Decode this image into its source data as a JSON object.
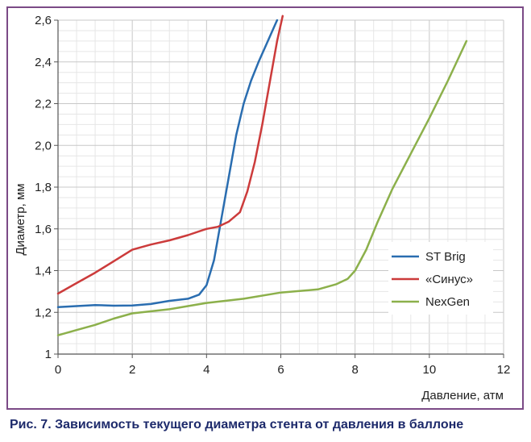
{
  "chart_data": {
    "type": "line",
    "title": "",
    "xlabel": "Давление, атм",
    "ylabel": "Диаметр, мм",
    "xlim": [
      0,
      12
    ],
    "ylim": [
      1,
      2.6
    ],
    "xticks": [
      "0",
      "2",
      "4",
      "6",
      "8",
      "10",
      "12"
    ],
    "yticks": [
      "1",
      "1,2",
      "1,4",
      "1,6",
      "1,8",
      "2,0",
      "2,2",
      "2,4",
      "2,6"
    ],
    "grid": true,
    "legend_position": "right",
    "series": [
      {
        "name": "ST Brig",
        "color": "#2a6db0",
        "points": [
          [
            0,
            1.225
          ],
          [
            0.5,
            1.23
          ],
          [
            1,
            1.235
          ],
          [
            1.5,
            1.232
          ],
          [
            2,
            1.233
          ],
          [
            2.5,
            1.24
          ],
          [
            3,
            1.255
          ],
          [
            3.5,
            1.265
          ],
          [
            3.8,
            1.285
          ],
          [
            4,
            1.33
          ],
          [
            4.2,
            1.45
          ],
          [
            4.4,
            1.65
          ],
          [
            4.6,
            1.85
          ],
          [
            4.8,
            2.05
          ],
          [
            5,
            2.2
          ],
          [
            5.2,
            2.31
          ],
          [
            5.4,
            2.4
          ],
          [
            5.6,
            2.48
          ],
          [
            5.8,
            2.56
          ],
          [
            5.9,
            2.6
          ]
        ]
      },
      {
        "name": "«Синус»",
        "color": "#cc3b3b",
        "points": [
          [
            0,
            1.29
          ],
          [
            0.5,
            1.34
          ],
          [
            1,
            1.39
          ],
          [
            1.5,
            1.445
          ],
          [
            2,
            1.5
          ],
          [
            2.5,
            1.525
          ],
          [
            3,
            1.545
          ],
          [
            3.5,
            1.57
          ],
          [
            4,
            1.6
          ],
          [
            4.3,
            1.61
          ],
          [
            4.6,
            1.635
          ],
          [
            4.9,
            1.68
          ],
          [
            5.1,
            1.78
          ],
          [
            5.3,
            1.92
          ],
          [
            5.5,
            2.1
          ],
          [
            5.7,
            2.3
          ],
          [
            5.9,
            2.5
          ],
          [
            6.05,
            2.62
          ]
        ]
      },
      {
        "name": "NexGen",
        "color": "#8cb04b",
        "points": [
          [
            0,
            1.09
          ],
          [
            0.5,
            1.115
          ],
          [
            1,
            1.14
          ],
          [
            1.5,
            1.17
          ],
          [
            2,
            1.195
          ],
          [
            3,
            1.215
          ],
          [
            4,
            1.245
          ],
          [
            5,
            1.265
          ],
          [
            6,
            1.295
          ],
          [
            7,
            1.31
          ],
          [
            7.5,
            1.335
          ],
          [
            7.8,
            1.36
          ],
          [
            8,
            1.4
          ],
          [
            8.3,
            1.5
          ],
          [
            8.6,
            1.63
          ],
          [
            9,
            1.79
          ],
          [
            9.5,
            1.96
          ],
          [
            10,
            2.13
          ],
          [
            10.5,
            2.31
          ],
          [
            11,
            2.5
          ]
        ]
      }
    ]
  },
  "caption": "Рис. 7. Зависимость текущего диаметра стента от давления в баллоне"
}
